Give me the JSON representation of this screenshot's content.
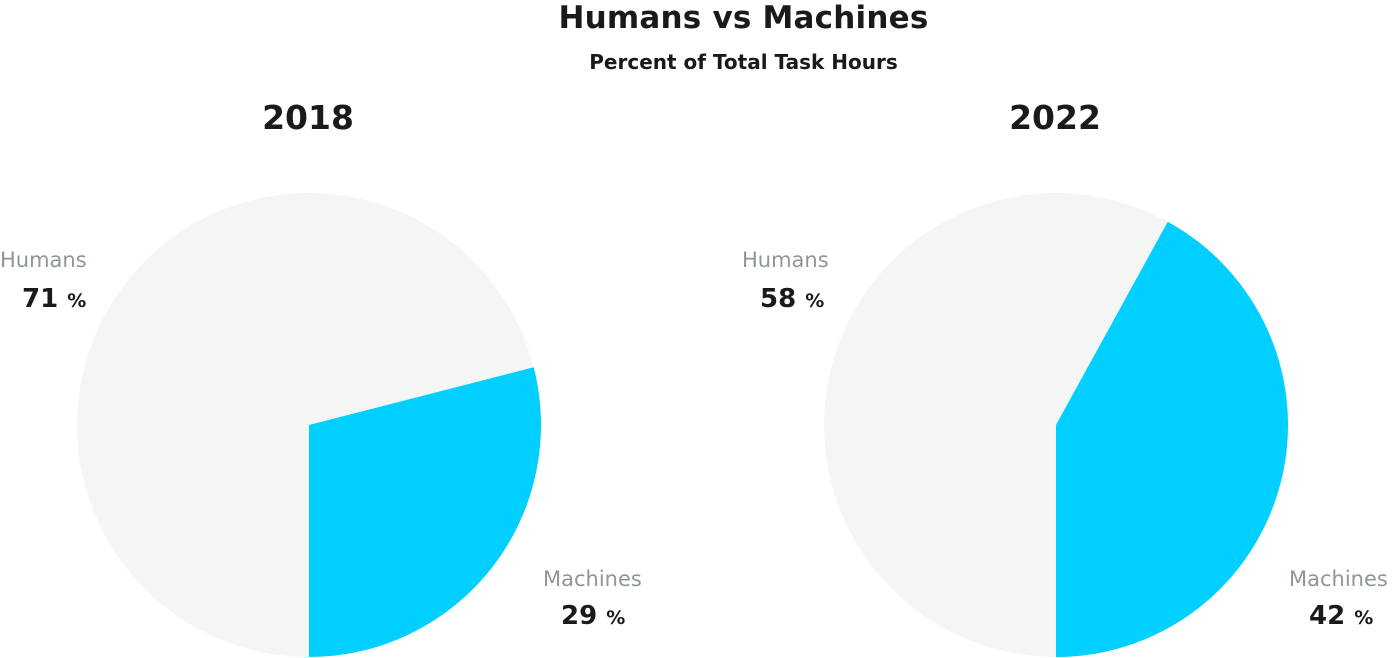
{
  "chart_data": {
    "type": "pie",
    "title": "Humans vs Machines",
    "subtitle": "Percent of Total Task Hours",
    "colors": {
      "Humans": "#f4f5f5",
      "Machines": "#00cfff"
    },
    "charts": [
      {
        "year": "2018",
        "slices": [
          {
            "label": "Humans",
            "value": "71",
            "unit": "%"
          },
          {
            "label": "Machines",
            "value": "29",
            "unit": "%"
          }
        ]
      },
      {
        "year": "2022",
        "slices": [
          {
            "label": "Humans",
            "value": "58",
            "unit": "%"
          },
          {
            "label": "Machines",
            "value": "42",
            "unit": "%"
          }
        ]
      }
    ]
  }
}
